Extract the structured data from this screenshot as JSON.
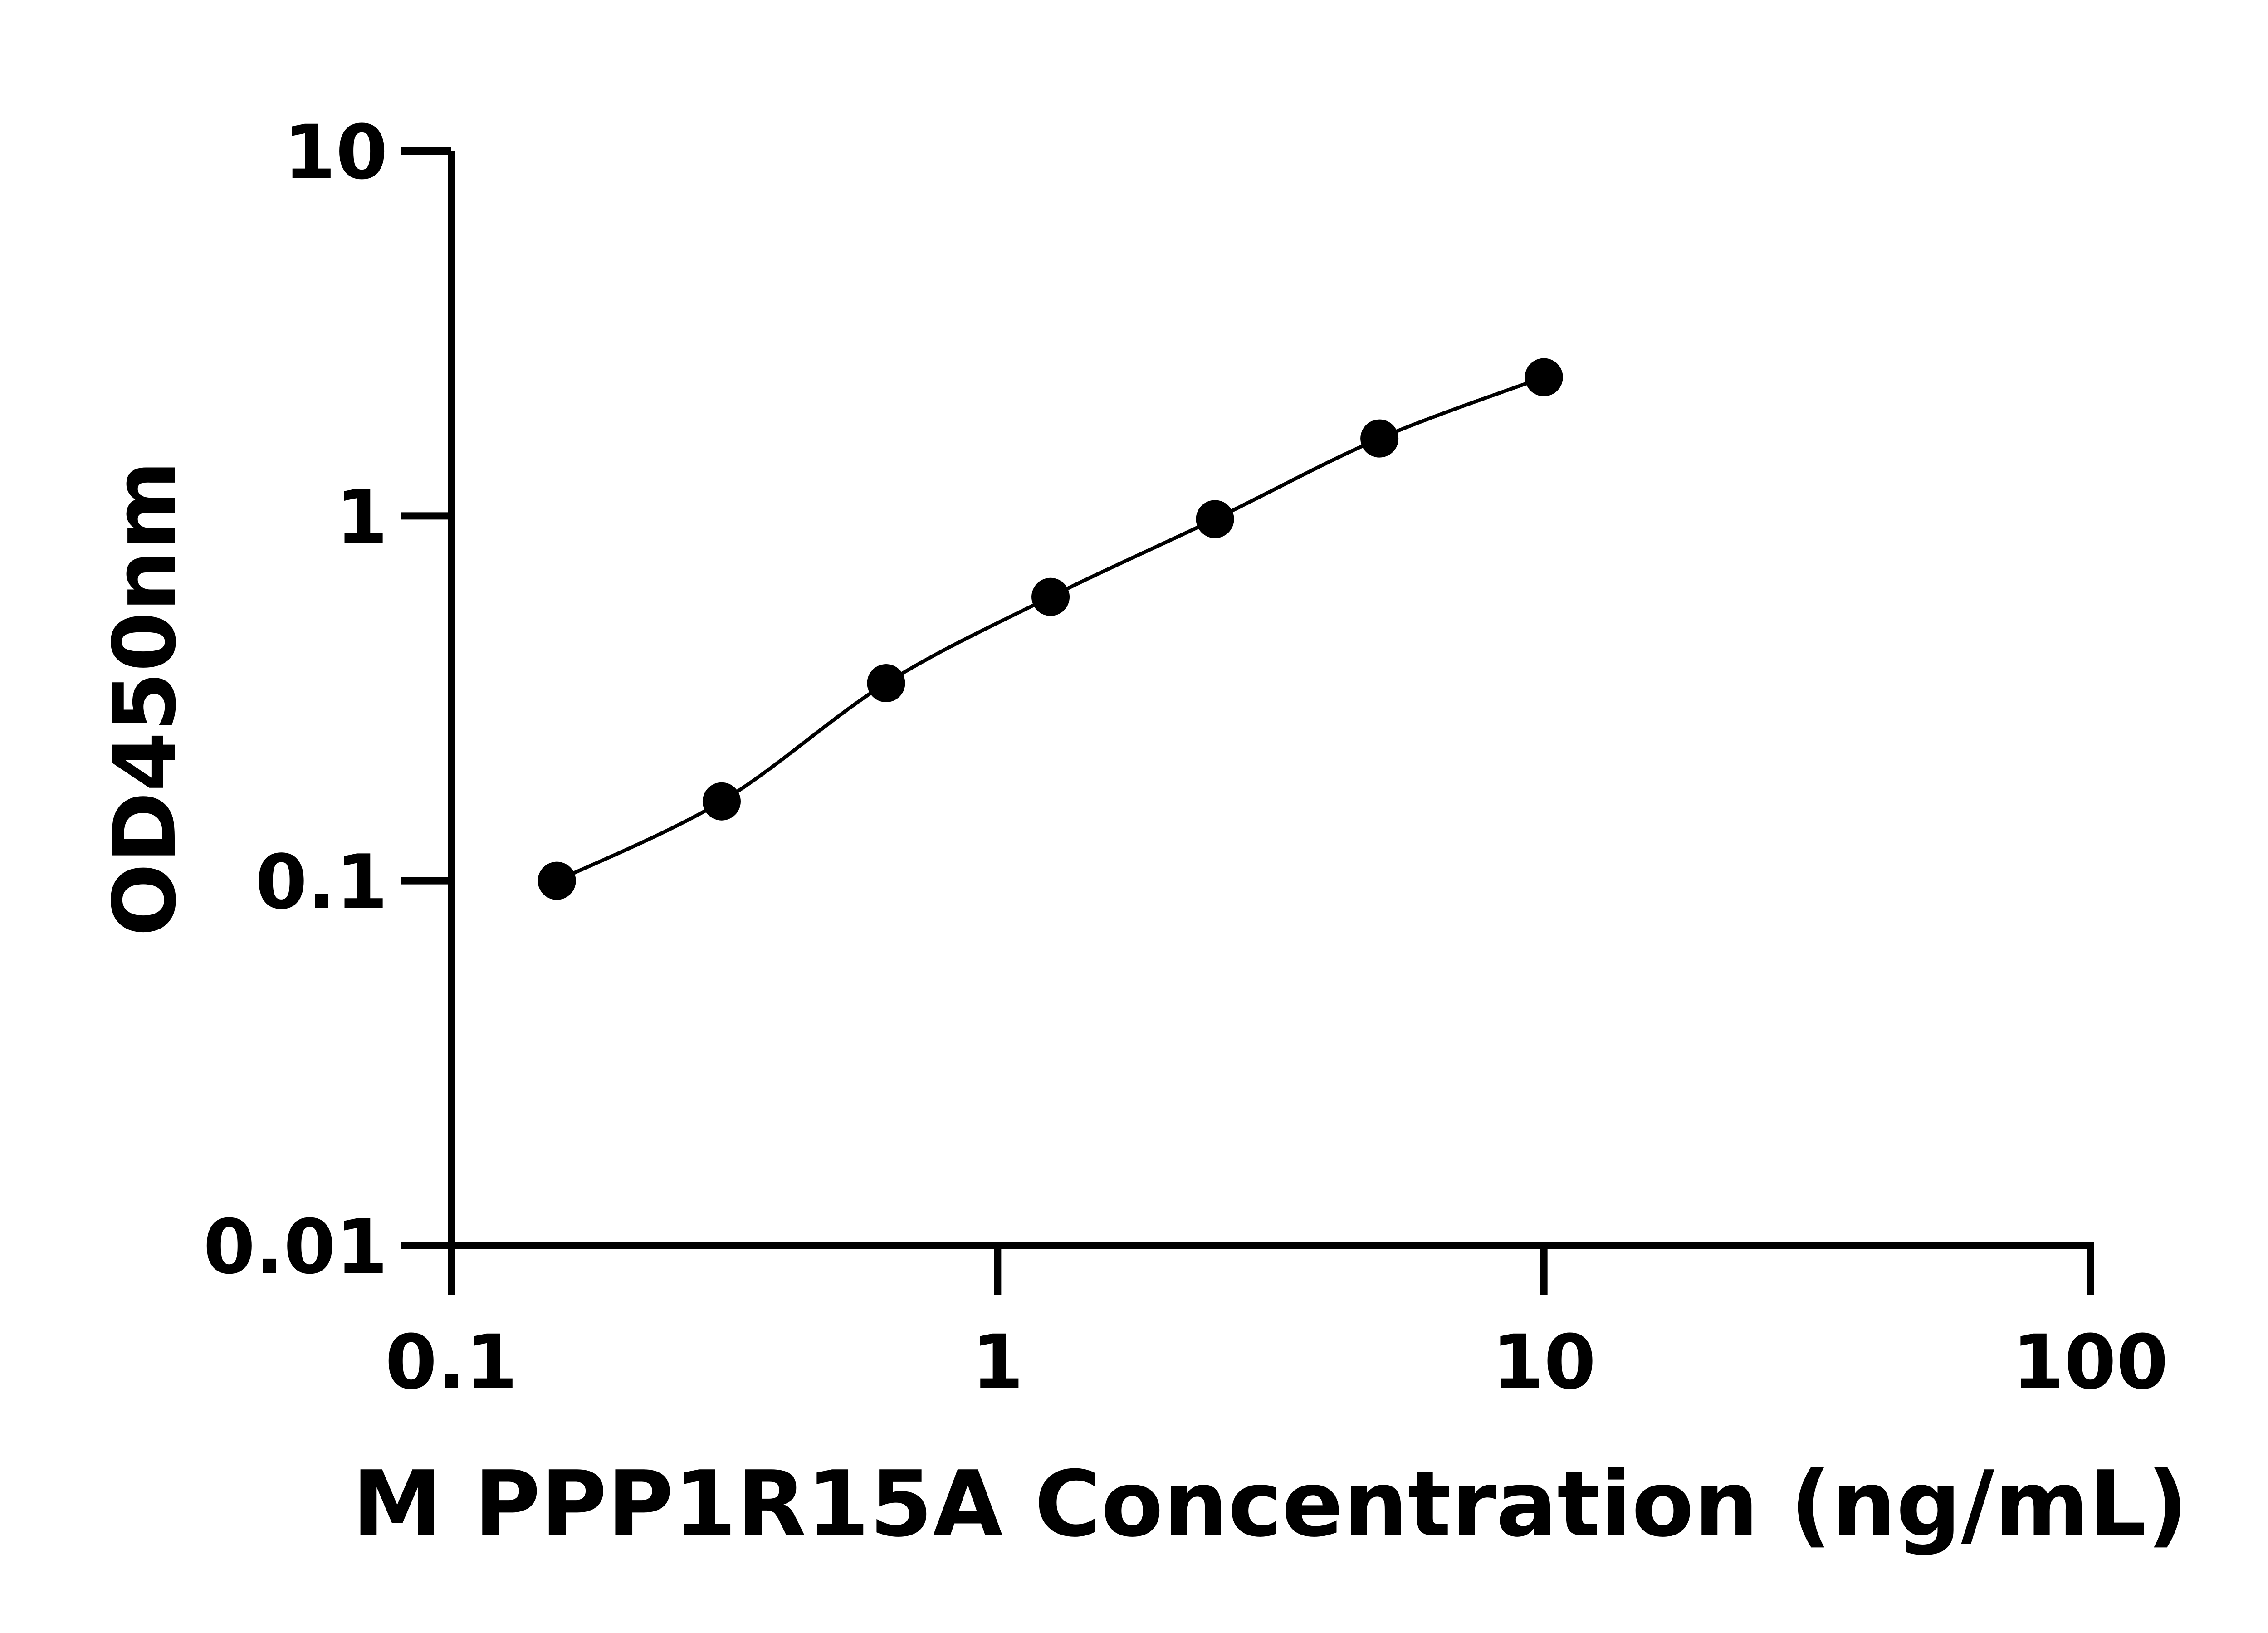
{
  "chart_data": {
    "type": "line",
    "title": "",
    "xlabel": "M PPP1R15A Concentration (ng/mL)",
    "ylabel": "OD450nm",
    "xscale": "log",
    "yscale": "log",
    "xlim": [
      0.1,
      100
    ],
    "ylim": [
      0.01,
      10
    ],
    "xticks": [
      "0.1",
      "1",
      "10",
      "100"
    ],
    "yticks": [
      "0.01",
      "0.1",
      "1",
      "10"
    ],
    "grid": false,
    "legend": "none",
    "series": [
      {
        "x": [
          0.156,
          0.3125,
          0.625,
          1.25,
          2.5,
          5,
          10
        ],
        "y": [
          0.1,
          0.165,
          0.348,
          0.6,
          0.98,
          1.63,
          2.4
        ],
        "marker": "circle",
        "color": "#000000",
        "fit_curve": true
      }
    ]
  }
}
